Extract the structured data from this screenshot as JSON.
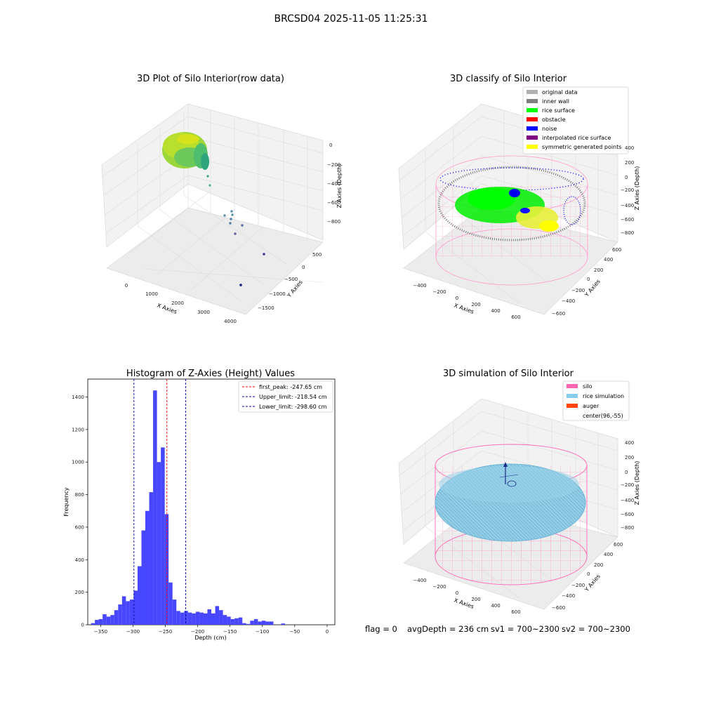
{
  "suptitle": "BRCSD04 2025-11-05 11:25:31",
  "footer": {
    "flag": "flag = 0",
    "avg_depth": "avgDepth = 236 cm",
    "sv1": "sv1 = 700~2300",
    "sv2": "sv2 = 700~2300"
  },
  "colors": {
    "hist_bar": "#4747ff",
    "peak_line": "#ff0000",
    "limit_line": "#0000aa",
    "silo": "#ff69b4",
    "rice_simulation": "#87ceeb",
    "auger": "#ff4500",
    "rice_surface": "#00ff00",
    "inner_wall": "#808080",
    "noise": "#0000ff",
    "symmetric": "#ffff00"
  },
  "chart_data": [
    {
      "type": "scatter",
      "projection": "3d",
      "title": "3D Plot of Silo Interior(row data)",
      "xlabel": "X Axies",
      "ylabel": "Y Axies",
      "zlabel": "Z Axies (Depth)",
      "xticks": [
        "0",
        "1000",
        "2000",
        "3000",
        "4000"
      ],
      "yticks": [
        "500",
        "0",
        "−500",
        "−1000",
        "−1500"
      ],
      "zticks": [
        "0",
        "−200",
        "−400",
        "−600",
        "−800"
      ],
      "grid": true,
      "description_points": "dense cluster near x≈300, z≈-200 with scattered outliers toward x≈4000"
    },
    {
      "type": "scatter",
      "projection": "3d",
      "title": "3D classify of Silo Interior",
      "xlabel": "X Axies",
      "ylabel": "Y Axies",
      "zlabel": "Z Axies (Depth)",
      "xticks": [
        "−400",
        "−200",
        "0",
        "200",
        "400",
        "600"
      ],
      "yticks": [
        "600",
        "400",
        "200",
        "0",
        "−200",
        "−400",
        "−600"
      ],
      "zticks": [
        "400",
        "200",
        "0",
        "−200",
        "−400",
        "−600",
        "−800"
      ],
      "legend": [
        {
          "label": "original data",
          "color": "#b0b0b0"
        },
        {
          "label": "inner wall",
          "color": "#808080"
        },
        {
          "label": "rice surface",
          "color": "#00ff00"
        },
        {
          "label": "obstacle",
          "color": "#ff0000"
        },
        {
          "label": "noise",
          "color": "#0000ff"
        },
        {
          "label": "interpolated rice surface",
          "color": "#800080"
        },
        {
          "label": "symmetric generated points",
          "color": "#ffff00"
        }
      ],
      "legend_position": "top-right",
      "grid": true
    },
    {
      "type": "bar",
      "title": "Histogram of Z-Axies (Height) Values",
      "xlabel": "Depth (cm)",
      "ylabel": "Frequency",
      "xlim": [
        -370,
        12
      ],
      "ylim": [
        0,
        1510
      ],
      "xticks": [
        -350,
        -300,
        -250,
        -200,
        -150,
        -100,
        -50,
        0
      ],
      "yticks": [
        0,
        200,
        400,
        600,
        800,
        1000,
        1200,
        1400
      ],
      "xtick_labels": [
        "−350",
        "−300",
        "−250",
        "−200",
        "−150",
        "−100",
        "−50",
        "0"
      ],
      "ytick_labels": [
        "0",
        "200",
        "400",
        "600",
        "800",
        "1000",
        "1200",
        "1400"
      ],
      "bins": [
        {
          "x0": -365,
          "x1": -359,
          "v": 10
        },
        {
          "x0": -359,
          "x1": -353,
          "v": 30
        },
        {
          "x0": -353,
          "x1": -347,
          "v": 35
        },
        {
          "x0": -347,
          "x1": -341,
          "v": 65
        },
        {
          "x0": -341,
          "x1": -335,
          "v": 50
        },
        {
          "x0": -335,
          "x1": -329,
          "v": 60
        },
        {
          "x0": -329,
          "x1": -323,
          "v": 90
        },
        {
          "x0": -323,
          "x1": -317,
          "v": 125
        },
        {
          "x0": -317,
          "x1": -311,
          "v": 175
        },
        {
          "x0": -311,
          "x1": -305,
          "v": 145
        },
        {
          "x0": -305,
          "x1": -299,
          "v": 155
        },
        {
          "x0": -299,
          "x1": -293,
          "v": 210
        },
        {
          "x0": -293,
          "x1": -287,
          "v": 360
        },
        {
          "x0": -287,
          "x1": -281,
          "v": 580
        },
        {
          "x0": -281,
          "x1": -275,
          "v": 700
        },
        {
          "x0": -275,
          "x1": -269,
          "v": 815
        },
        {
          "x0": -269,
          "x1": -263,
          "v": 1440
        },
        {
          "x0": -263,
          "x1": -257,
          "v": 1000
        },
        {
          "x0": -257,
          "x1": -251,
          "v": 1090
        },
        {
          "x0": -251,
          "x1": -245,
          "v": 680
        },
        {
          "x0": -245,
          "x1": -239,
          "v": 260
        },
        {
          "x0": -239,
          "x1": -233,
          "v": 155
        },
        {
          "x0": -233,
          "x1": -227,
          "v": 85
        },
        {
          "x0": -227,
          "x1": -221,
          "v": 75
        },
        {
          "x0": -221,
          "x1": -215,
          "v": 85
        },
        {
          "x0": -215,
          "x1": -209,
          "v": 75
        },
        {
          "x0": -209,
          "x1": -203,
          "v": 70
        },
        {
          "x0": -203,
          "x1": -197,
          "v": 80
        },
        {
          "x0": -197,
          "x1": -191,
          "v": 75
        },
        {
          "x0": -191,
          "x1": -185,
          "v": 70
        },
        {
          "x0": -185,
          "x1": -179,
          "v": 95
        },
        {
          "x0": -179,
          "x1": -173,
          "v": 70
        },
        {
          "x0": -173,
          "x1": -167,
          "v": 115
        },
        {
          "x0": -167,
          "x1": -161,
          "v": 90
        },
        {
          "x0": -161,
          "x1": -155,
          "v": 60
        },
        {
          "x0": -155,
          "x1": -149,
          "v": 50
        },
        {
          "x0": -149,
          "x1": -143,
          "v": 35
        },
        {
          "x0": -143,
          "x1": -137,
          "v": 40
        },
        {
          "x0": -137,
          "x1": -131,
          "v": 45
        },
        {
          "x0": -131,
          "x1": -125,
          "v": 10
        },
        {
          "x0": -125,
          "x1": -119,
          "v": 5
        },
        {
          "x0": -119,
          "x1": -113,
          "v": 25
        },
        {
          "x0": -113,
          "x1": -107,
          "v": 35
        },
        {
          "x0": -107,
          "x1": -101,
          "v": 20
        },
        {
          "x0": -101,
          "x1": -95,
          "v": 25
        },
        {
          "x0": -95,
          "x1": -89,
          "v": 20
        },
        {
          "x0": -89,
          "x1": -83,
          "v": 20
        },
        {
          "x0": -83,
          "x1": -77,
          "v": 0
        },
        {
          "x0": -77,
          "x1": -71,
          "v": 0
        },
        {
          "x0": -71,
          "x1": -65,
          "v": 8
        }
      ],
      "vlines": [
        {
          "x": -247.65,
          "label": "first_peak: -247.65 cm",
          "color": "#ff0000"
        },
        {
          "x": -218.54,
          "label": "Upper_limit: -218.54 cm",
          "color": "#0000aa"
        },
        {
          "x": -298.6,
          "label": "Lower_limit: -298.60 cm",
          "color": "#0000aa"
        }
      ],
      "legend_position": "top-right"
    },
    {
      "type": "scatter",
      "projection": "3d",
      "title": "3D simulation of Silo Interior",
      "xlabel": "X Axies",
      "ylabel": "Y Axies",
      "zlabel": "Z Axies (Depth)",
      "xticks": [
        "−400",
        "−200",
        "0",
        "200",
        "400",
        "600"
      ],
      "yticks": [
        "600",
        "400",
        "200",
        "0",
        "−200",
        "−400",
        "−600"
      ],
      "zticks": [
        "400",
        "200",
        "0",
        "−200",
        "−400",
        "−600",
        "−800"
      ],
      "legend": [
        {
          "label": "silo",
          "color": "#ff69b4"
        },
        {
          "label": "rice simulation",
          "color": "#87ceeb"
        },
        {
          "label": "auger",
          "color": "#ff4500"
        },
        {
          "label": "center(96,-55)",
          "color": null
        }
      ],
      "legend_position": "top-right",
      "grid": true
    }
  ]
}
